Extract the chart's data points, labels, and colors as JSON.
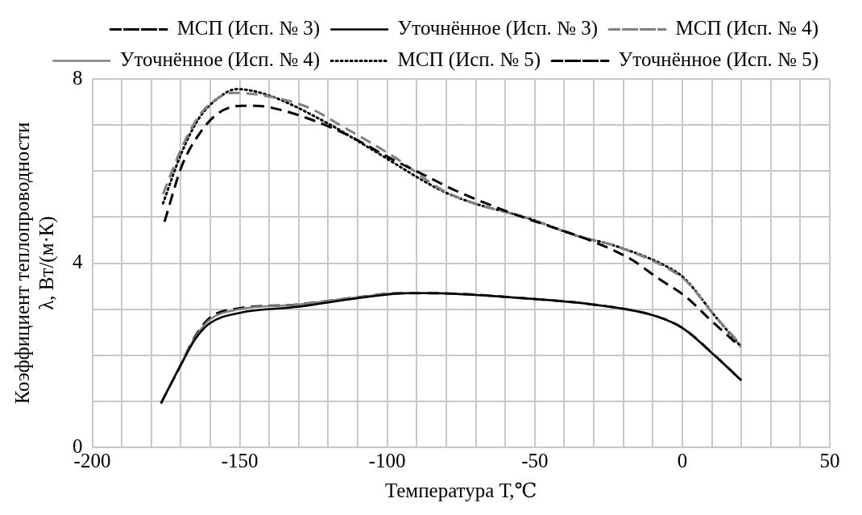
{
  "chart_data": {
    "type": "line",
    "xlabel": "Температура Т,℃",
    "ylabel": "Коэффициент теплопроводности\nλ, Вт/(м·К)",
    "xlim": [
      -200,
      50
    ],
    "xticks": [
      -200,
      {
        "value": -190,
        "label": null
      },
      {
        "value": -180,
        "label": null
      },
      {
        "value": -170,
        "label": null
      },
      {
        "value": -160,
        "label": null
      },
      -150,
      {
        "value": -140,
        "label": null
      },
      {
        "value": -130,
        "label": null
      },
      {
        "value": -120,
        "label": null
      },
      {
        "value": -110,
        "label": null
      },
      -100,
      {
        "value": -90,
        "label": null
      },
      {
        "value": -80,
        "label": null
      },
      {
        "value": -70,
        "label": null
      },
      {
        "value": -60,
        "label": null
      },
      -50,
      {
        "value": -40,
        "label": null
      },
      {
        "value": -30,
        "label": null
      },
      {
        "value": -20,
        "label": null
      },
      {
        "value": -10,
        "label": null
      },
      0,
      {
        "value": 10,
        "label": null
      },
      {
        "value": 20,
        "label": null
      },
      {
        "value": 30,
        "label": null
      },
      {
        "value": 40,
        "label": null
      },
      50
    ],
    "ylim": [
      0,
      8
    ],
    "yticks": [
      0,
      {
        "value": 1,
        "label": null
      },
      {
        "value": 2,
        "label": null
      },
      {
        "value": 3,
        "label": null
      },
      4,
      {
        "value": 5,
        "label": null
      },
      {
        "value": 6,
        "label": null
      },
      {
        "value": 7,
        "label": null
      },
      8
    ],
    "grid": true,
    "legend": "top",
    "marker": "none",
    "series": [
      {
        "name": "МСП (Исп. № 3)",
        "color": "#000000",
        "line_style": "dashed",
        "x": [
          -175.5,
          -169.7,
          -163.8,
          -157,
          -149,
          -145,
          -135.6,
          -116,
          -97.5,
          -86.7,
          -77,
          -58,
          -28,
          -17,
          -8.4,
          1.2,
          10,
          19.7
        ],
        "values": [
          4.9,
          6.1,
          6.8,
          7.27,
          7.42,
          7.42,
          7.32,
          6.86,
          6.23,
          5.89,
          5.58,
          5.09,
          4.41,
          4.07,
          3.68,
          3.27,
          2.74,
          2.18
        ]
      },
      {
        "name": "Уточнённое (Исп. № 3)",
        "color": "#000000",
        "line_style": "solid",
        "x": [
          -176.7,
          -169.7,
          -165,
          -160,
          -150,
          -130.6,
          -110,
          -96,
          -86.7,
          -50,
          -30,
          -9.5,
          0,
          11,
          20
        ],
        "values": [
          0.95,
          1.82,
          2.36,
          2.7,
          2.92,
          3.05,
          3.24,
          3.34,
          3.35,
          3.22,
          3.1,
          2.86,
          2.59,
          1.99,
          1.45
        ]
      },
      {
        "name": "МСП (Исп. № 4)",
        "color": "#808080",
        "line_style": "dashed",
        "x": [
          -176,
          -169.7,
          -163.8,
          -157,
          -152,
          -135.6,
          -125.7,
          -116,
          -97.5,
          -81.7,
          -72,
          -52,
          -36,
          -22,
          -2.6,
          1.2,
          11,
          20
        ],
        "values": [
          5.5,
          6.5,
          7.2,
          7.6,
          7.7,
          7.56,
          7.35,
          7.0,
          6.3,
          5.6,
          5.33,
          4.97,
          4.6,
          4.36,
          3.8,
          3.62,
          2.86,
          2.22
        ]
      },
      {
        "name": "Уточнённое (Исп. № 4)",
        "color": "#808080",
        "line_style": "solid",
        "x": [
          -176.7,
          -169.7,
          -165,
          -160,
          -150,
          -130.6,
          -110,
          -96,
          -86.7,
          -50,
          -30,
          -9.5,
          0,
          11,
          20
        ],
        "values": [
          0.97,
          1.84,
          2.4,
          2.78,
          3.0,
          3.1,
          3.26,
          3.35,
          3.35,
          3.22,
          3.1,
          2.86,
          2.6,
          2.0,
          1.47
        ]
      },
      {
        "name": "МСП (Исп. № 5)",
        "color": "#000000",
        "line_style": "dotted",
        "x": [
          -176,
          -169.7,
          -163.8,
          -157,
          -151,
          -140,
          -120,
          -106,
          -81.7,
          -72,
          -52,
          -36,
          -22,
          -2.6,
          1.2,
          11,
          20
        ],
        "values": [
          5.3,
          6.4,
          7.15,
          7.6,
          7.78,
          7.64,
          7.03,
          6.5,
          5.58,
          5.33,
          4.97,
          4.6,
          4.36,
          3.83,
          3.64,
          2.86,
          2.18
        ]
      },
      {
        "name": "Уточнённое (Исп. № 5)",
        "color": "#000000",
        "line_style": "dashed",
        "x": [
          -176.7,
          -169.7,
          -165,
          -160,
          -150,
          -130.6,
          -110,
          -96,
          -86.7,
          -50,
          -30,
          -9.5,
          0,
          11,
          20
        ],
        "values": [
          0.96,
          1.83,
          2.42,
          2.82,
          3.02,
          3.1,
          3.26,
          3.35,
          3.35,
          3.22,
          3.1,
          2.86,
          2.6,
          2.0,
          1.46
        ]
      }
    ]
  }
}
